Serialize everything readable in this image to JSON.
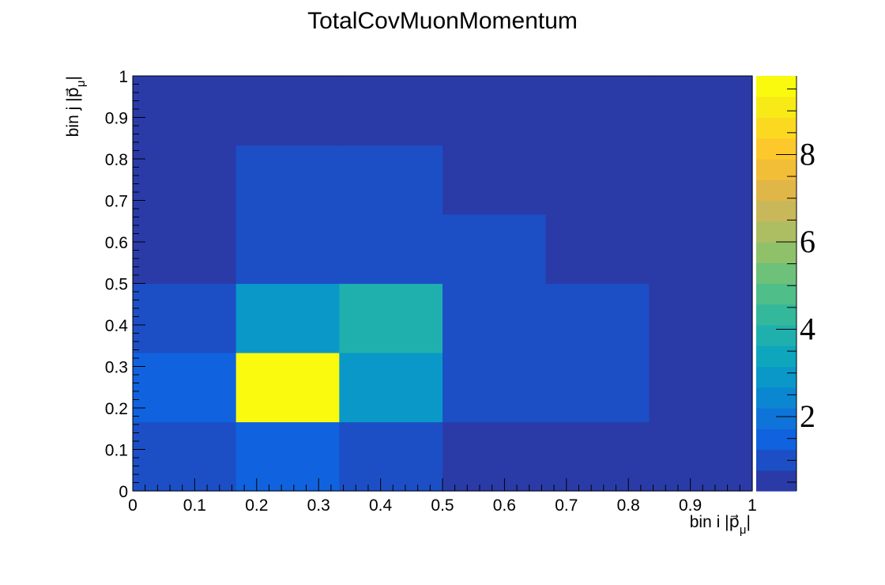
{
  "chart_data": {
    "type": "heatmap",
    "title": "TotalCovMuonMomentum",
    "xlabel": "bin i |p⃗",
    "xlabel_sub": "μ",
    "xlabel_end": "|",
    "ylabel": "bin j |p⃗",
    "ylabel_sub": "μ",
    "ylabel_end": "|",
    "xlim": [
      0,
      1
    ],
    "ylim": [
      0,
      1
    ],
    "x_ticks": [
      "0",
      "0.1",
      "0.2",
      "0.3",
      "0.4",
      "0.5",
      "0.6",
      "0.7",
      "0.8",
      "0.9",
      "1"
    ],
    "y_ticks": [
      "0",
      "0.1",
      "0.2",
      "0.3",
      "0.4",
      "0.5",
      "0.6",
      "0.7",
      "0.8",
      "0.9",
      "1"
    ],
    "z_range": [
      0.3,
      9.8
    ],
    "z_ticks": [
      "2",
      "4",
      "6",
      "8"
    ],
    "x_bins": 6,
    "y_bins": 6,
    "values_rows_from_bottom": [
      [
        1.15,
        1.5,
        0.8,
        0.3,
        0.3,
        0.3
      ],
      [
        1.5,
        9.8,
        3.1,
        1.1,
        1.1,
        0.3
      ],
      [
        0.8,
        3.1,
        3.9,
        0.8,
        0.8,
        0.3
      ],
      [
        0.3,
        1.1,
        0.8,
        0.8,
        0.3,
        0.3
      ],
      [
        0.3,
        1.1,
        0.8,
        0.3,
        0.3,
        0.3
      ],
      [
        0.3,
        0.3,
        0.3,
        0.3,
        0.3,
        0.3
      ]
    ],
    "palette": [
      "#2a3ba8",
      "#1c4fc6",
      "#1162de",
      "#0f74d9",
      "#0b87d1",
      "#0a98c8",
      "#0da6bc",
      "#1fb0ae",
      "#33b89c",
      "#4fbe89",
      "#6dc178",
      "#8fc16b",
      "#adbd62",
      "#c9b85a",
      "#e0b648",
      "#f2bd37",
      "#fdc82b",
      "#fbd921",
      "#f7ea17",
      "#f9fa0e"
    ],
    "grid": false,
    "legend": "colorbar-right"
  }
}
